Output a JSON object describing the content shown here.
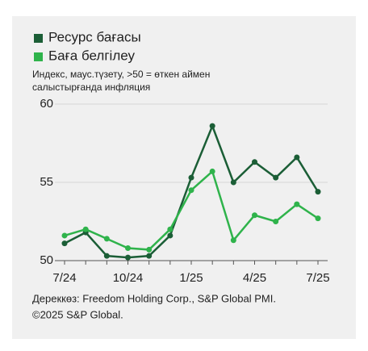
{
  "chart_data": {
    "type": "line",
    "subtitle": [
      "Индекс, маус.түзету, >50 = өткен аймен",
      "салыстырғанда инфляция"
    ],
    "categories": [
      "7/24",
      null,
      null,
      "10/24",
      null,
      null,
      "1/25",
      null,
      null,
      "4/25",
      null,
      null,
      "7/25"
    ],
    "series": [
      {
        "name": "Ресурс бағасы",
        "color": "#1b5e36",
        "values": [
          51.1,
          51.8,
          50.3,
          50.2,
          50.3,
          51.6,
          55.3,
          58.6,
          55.0,
          56.3,
          55.3,
          56.6,
          54.4
        ]
      },
      {
        "name": "Баға белгілеу",
        "color": "#2fb34b",
        "values": [
          51.6,
          52.0,
          51.4,
          50.8,
          50.7,
          52.0,
          54.5,
          55.7,
          51.3,
          52.9,
          52.5,
          53.6,
          52.7
        ]
      }
    ],
    "ylim": [
      50,
      60
    ],
    "yticks": [
      50,
      55,
      60
    ],
    "grid": true,
    "source": [
      "Дереккөз: Freedom Holding Corp., S&P Global PMI.",
      "©2025 S&P Global."
    ]
  }
}
